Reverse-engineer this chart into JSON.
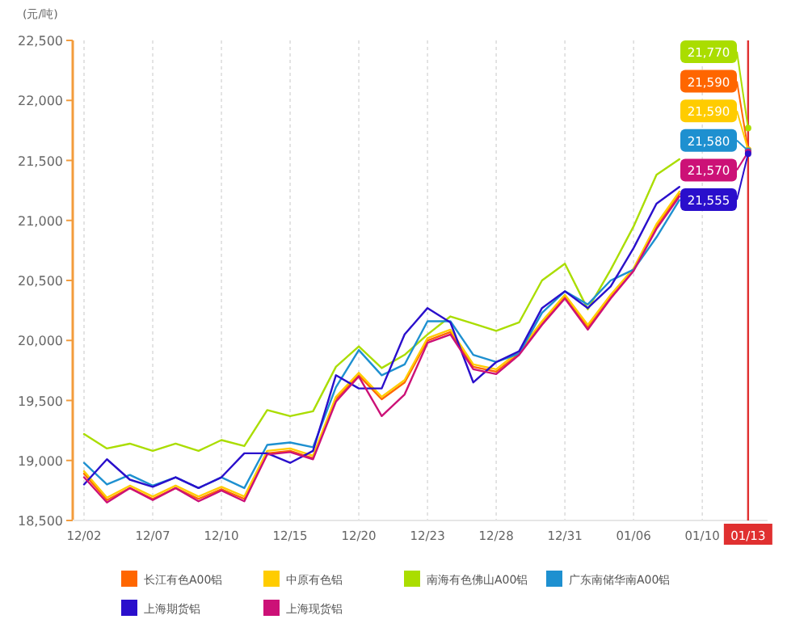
{
  "chart_data": {
    "type": "line",
    "ylabel": "(元/吨)",
    "categories": [
      "12/02",
      null,
      null,
      "12/07",
      null,
      null,
      "12/10",
      null,
      null,
      "12/15",
      null,
      null,
      "12/20",
      null,
      null,
      "12/23",
      null,
      null,
      "12/28",
      null,
      null,
      "12/31",
      null,
      null,
      "01/06",
      null,
      null,
      "01/10",
      null,
      "01/13"
    ],
    "ylim": [
      18500,
      22500
    ],
    "yticks": [
      {
        "value": 18500,
        "label": "18,500"
      },
      {
        "value": 19000,
        "label": "19,000"
      },
      {
        "value": 19500,
        "label": "19,500"
      },
      {
        "value": 20000,
        "label": "20,000"
      },
      {
        "value": 20500,
        "label": "20,500"
      },
      {
        "value": 21000,
        "label": "21,000"
      },
      {
        "value": 21500,
        "label": "21,500"
      },
      {
        "value": 22000,
        "label": "22,000"
      },
      {
        "value": 22500,
        "label": "22,500"
      }
    ],
    "grid": "x",
    "legend": "bottom",
    "marker": "none",
    "line_style": "solid",
    "ref_lines": [
      {
        "axis": "x",
        "value": "01/13",
        "color": "#e03030"
      }
    ],
    "series": [
      {
        "name": "长江有色A00铝",
        "color": "#ff6600",
        "values": [
          18890,
          18670,
          18770,
          18680,
          18770,
          18680,
          18760,
          18680,
          19060,
          19080,
          19020,
          19510,
          19710,
          19510,
          19650,
          20000,
          20070,
          19780,
          19740,
          19890,
          20140,
          20370,
          20110,
          20370,
          20590,
          20950,
          21220,
          null,
          null,
          21590
        ],
        "value_labels": [
          null,
          null,
          null,
          null,
          null,
          null,
          null,
          null,
          null,
          null,
          null,
          null,
          null,
          null,
          null,
          null,
          null,
          null,
          null,
          null,
          null,
          null,
          null,
          null,
          null,
          null,
          null,
          null,
          null,
          "21,590"
        ]
      },
      {
        "name": "中原有色铝",
        "color": "#ffcc00",
        "values": [
          18910,
          18690,
          18790,
          18700,
          18790,
          18700,
          18780,
          18700,
          19080,
          19100,
          19040,
          19530,
          19730,
          19530,
          19670,
          20020,
          20090,
          19800,
          19760,
          19910,
          20160,
          20380,
          20130,
          20380,
          20600,
          20970,
          21240,
          null,
          null,
          21590
        ],
        "value_labels": [
          null,
          null,
          null,
          null,
          null,
          null,
          null,
          null,
          null,
          null,
          null,
          null,
          null,
          null,
          null,
          null,
          null,
          null,
          null,
          null,
          null,
          null,
          null,
          null,
          null,
          null,
          null,
          null,
          null,
          "21,590"
        ]
      },
      {
        "name": "南海有色佛山A00铝",
        "color": "#aadd00",
        "values": [
          19220,
          19100,
          19140,
          19080,
          19140,
          19080,
          19170,
          19120,
          19420,
          19370,
          19410,
          19780,
          19950,
          19770,
          19880,
          20050,
          20200,
          20140,
          20080,
          20150,
          20500,
          20640,
          20260,
          20590,
          20950,
          21380,
          21510,
          null,
          null,
          21770
        ],
        "value_labels": [
          null,
          null,
          null,
          null,
          null,
          null,
          null,
          null,
          null,
          null,
          null,
          null,
          null,
          null,
          null,
          null,
          null,
          null,
          null,
          null,
          null,
          null,
          null,
          null,
          null,
          null,
          null,
          null,
          null,
          "21,770"
        ]
      },
      {
        "name": "广东南储华南A00铝",
        "color": "#1e90d0",
        "values": [
          18980,
          18800,
          18880,
          18790,
          18860,
          18770,
          18860,
          18770,
          19130,
          19150,
          19110,
          19610,
          19920,
          19710,
          19800,
          20160,
          20160,
          19880,
          19820,
          19890,
          20230,
          20410,
          20300,
          20500,
          20590,
          20860,
          21170,
          null,
          null,
          21580
        ],
        "value_labels": [
          null,
          null,
          null,
          null,
          null,
          null,
          null,
          null,
          null,
          null,
          null,
          null,
          null,
          null,
          null,
          null,
          null,
          null,
          null,
          null,
          null,
          null,
          null,
          null,
          null,
          null,
          null,
          null,
          null,
          "21,580"
        ]
      },
      {
        "name": "上海期货铝",
        "color": "#2a0fcc",
        "values": [
          18800,
          19010,
          18840,
          18780,
          18860,
          18770,
          18860,
          19060,
          19060,
          18980,
          19080,
          19710,
          19600,
          19600,
          20050,
          20270,
          20150,
          19650,
          19820,
          19910,
          20270,
          20410,
          20270,
          20450,
          20770,
          21140,
          21280,
          null,
          null,
          21555
        ],
        "value_labels": [
          null,
          null,
          null,
          null,
          null,
          null,
          null,
          null,
          null,
          null,
          null,
          null,
          null,
          null,
          null,
          null,
          null,
          null,
          null,
          null,
          null,
          null,
          null,
          null,
          null,
          null,
          null,
          null,
          null,
          "21,555"
        ]
      },
      {
        "name": "上海现货铝",
        "color": "#cc1177",
        "values": [
          18860,
          18650,
          18770,
          18670,
          18770,
          18660,
          18750,
          18660,
          19050,
          19070,
          19010,
          19490,
          19700,
          19370,
          19550,
          19980,
          20050,
          19760,
          19720,
          19880,
          20130,
          20350,
          20090,
          20350,
          20580,
          20930,
          21200,
          null,
          null,
          21570
        ],
        "value_labels": [
          null,
          null,
          null,
          null,
          null,
          null,
          null,
          null,
          null,
          null,
          null,
          null,
          null,
          null,
          null,
          null,
          null,
          null,
          null,
          null,
          null,
          null,
          null,
          null,
          null,
          null,
          null,
          null,
          null,
          "21,570"
        ]
      }
    ]
  }
}
